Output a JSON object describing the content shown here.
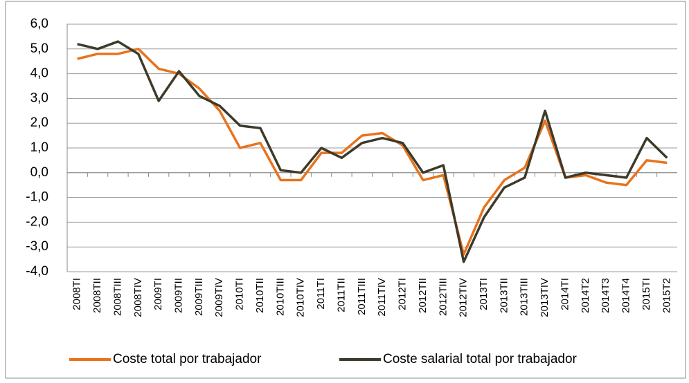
{
  "chart_data": {
    "type": "line",
    "categories": [
      "2008TI",
      "2008TII",
      "2008TIII",
      "2008TIV",
      "2009TI",
      "2009TII",
      "2009TIII",
      "2009TIV",
      "2010TI",
      "2010TII",
      "2010TIII",
      "2010TIV",
      "2011TI",
      "2011TII",
      "2011TIII",
      "2011TIV",
      "2012TI",
      "2012TII",
      "2012TIII",
      "2012TIV",
      "2013TI",
      "2013TII",
      "2013TIII",
      "2013TIV",
      "2014TI",
      "2014T2",
      "2014T3",
      "2014T4",
      "2015TI",
      "2015T2"
    ],
    "series": [
      {
        "name": "Coste total por trabajador",
        "color": "#e8731c",
        "values": [
          4.6,
          4.8,
          4.8,
          5.0,
          4.2,
          4.0,
          3.4,
          2.5,
          1.0,
          1.2,
          -0.3,
          -0.3,
          0.8,
          0.8,
          1.5,
          1.6,
          1.1,
          -0.3,
          -0.1,
          -3.3,
          -1.4,
          -0.3,
          0.2,
          2.1,
          -0.2,
          -0.1,
          -0.4,
          -0.5,
          0.5,
          0.4
        ]
      },
      {
        "name": "Coste salarial total por trabajador",
        "color": "#3d3a2a",
        "values": [
          5.2,
          5.0,
          5.3,
          4.8,
          2.9,
          4.1,
          3.1,
          2.7,
          1.9,
          1.8,
          0.1,
          0.0,
          1.0,
          0.6,
          1.2,
          1.4,
          1.2,
          0.0,
          0.3,
          -3.6,
          -1.8,
          -0.6,
          -0.2,
          2.5,
          -0.2,
          0.0,
          -0.1,
          -0.2,
          1.4,
          0.6
        ]
      }
    ],
    "ylim": [
      -4,
      6
    ],
    "yticks": [
      {
        "value": -4,
        "label": "-4,0"
      },
      {
        "value": -3,
        "label": "-3,0"
      },
      {
        "value": -2,
        "label": "-2,0"
      },
      {
        "value": -1,
        "label": "-1,0"
      },
      {
        "value": 0,
        "label": "0,0"
      },
      {
        "value": 1,
        "label": "1,0"
      },
      {
        "value": 2,
        "label": "2,0"
      },
      {
        "value": 3,
        "label": "3,0"
      },
      {
        "value": 4,
        "label": "4,0"
      },
      {
        "value": 5,
        "label": "5,0"
      },
      {
        "value": 6,
        "label": "6,0"
      }
    ],
    "grid": true,
    "negative_tick_color": "#e00000",
    "legend": "bottom"
  }
}
